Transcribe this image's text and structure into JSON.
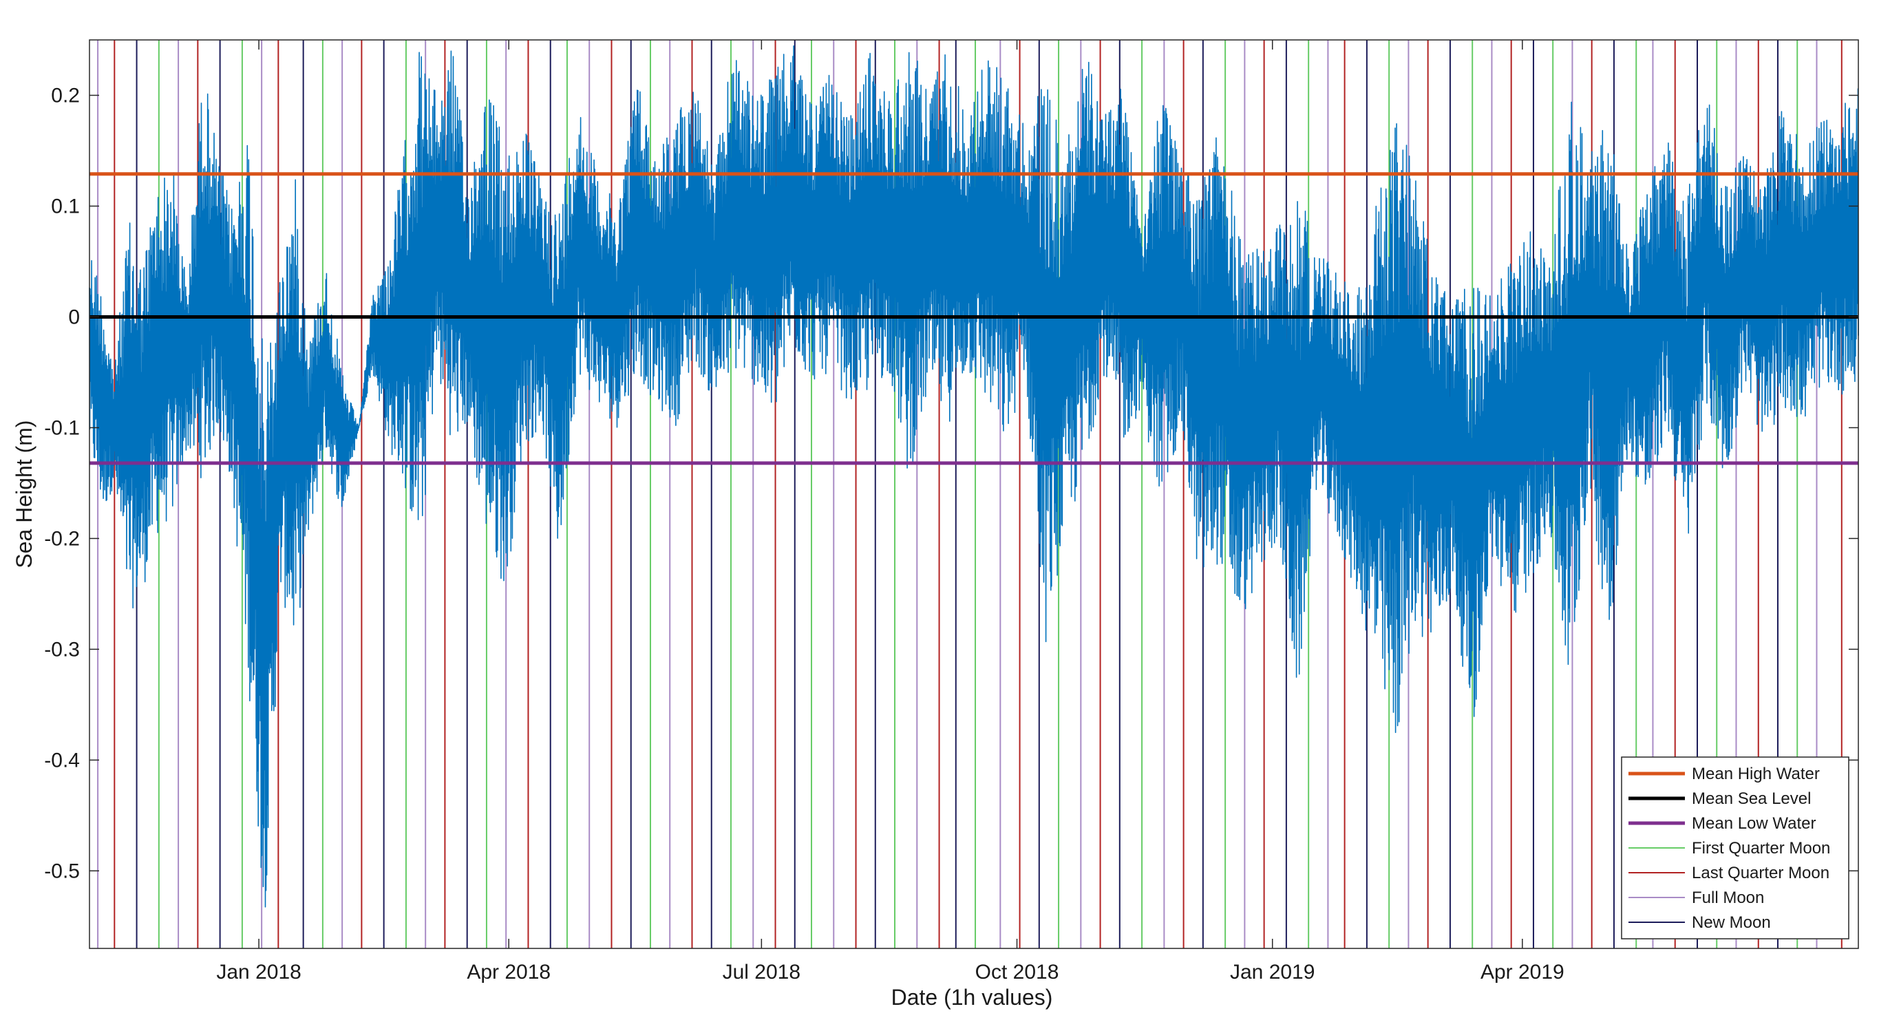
{
  "chart_data": {
    "type": "line",
    "xlabel": "Date (1h values)",
    "ylabel": "Sea Height (m)",
    "xlim": [
      "2017-11-01",
      "2019-07-31"
    ],
    "ylim": [
      -0.57,
      0.25
    ],
    "x_ticks": [
      {
        "date": "2018-01-01",
        "label": "Jan 2018"
      },
      {
        "date": "2018-04-01",
        "label": "Apr 2018"
      },
      {
        "date": "2018-07-01",
        "label": "Jul 2018"
      },
      {
        "date": "2018-10-01",
        "label": "Oct 2018"
      },
      {
        "date": "2019-01-01",
        "label": "Jan 2019"
      },
      {
        "date": "2019-04-01",
        "label": "Apr 2019"
      }
    ],
    "y_ticks": [
      {
        "value": 0.2,
        "label": "0.2"
      },
      {
        "value": 0.1,
        "label": "0.1"
      },
      {
        "value": 0,
        "label": "0"
      },
      {
        "value": -0.1,
        "label": "-0.1"
      },
      {
        "value": -0.2,
        "label": "-0.2"
      },
      {
        "value": -0.3,
        "label": "-0.3"
      },
      {
        "value": -0.4,
        "label": "-0.4"
      },
      {
        "value": -0.5,
        "label": "-0.5"
      }
    ],
    "reference_lines": [
      {
        "name": "Mean High Water",
        "value": 0.129,
        "color": "#d95319"
      },
      {
        "name": "Mean Sea Level",
        "value": 0.0,
        "color": "#000000"
      },
      {
        "name": "Mean Low Water",
        "value": -0.132,
        "color": "#7e2f8e"
      }
    ],
    "moon_phases": {
      "first_quarter": {
        "name": "First Quarter Moon",
        "color": "#66cc66",
        "dates": [
          "2017-11-26",
          "2017-12-26",
          "2018-01-24",
          "2018-02-23",
          "2018-03-24",
          "2018-04-22",
          "2018-05-22",
          "2018-06-20",
          "2018-07-19",
          "2018-08-18",
          "2018-09-16",
          "2018-10-16",
          "2018-11-15",
          "2018-12-15",
          "2019-01-14",
          "2019-02-12",
          "2019-03-14",
          "2019-04-12",
          "2019-05-12",
          "2019-06-10",
          "2019-07-09"
        ]
      },
      "last_quarter": {
        "name": "Last Quarter Moon",
        "color": "#b22222",
        "dates": [
          "2017-11-10",
          "2017-12-10",
          "2018-01-08",
          "2018-02-07",
          "2018-03-09",
          "2018-04-08",
          "2018-05-08",
          "2018-06-06",
          "2018-07-06",
          "2018-08-04",
          "2018-09-03",
          "2018-10-02",
          "2018-10-31",
          "2018-11-30",
          "2018-12-29",
          "2019-01-27",
          "2019-02-26",
          "2019-03-28",
          "2019-04-26",
          "2019-05-26",
          "2019-06-25",
          "2019-07-25"
        ]
      },
      "full_moon": {
        "name": "Full Moon",
        "color": "#a98bc6",
        "dates": [
          "2017-11-04",
          "2017-12-03",
          "2018-01-02",
          "2018-01-31",
          "2018-03-02",
          "2018-03-31",
          "2018-04-30",
          "2018-05-29",
          "2018-06-28",
          "2018-07-27",
          "2018-08-26",
          "2018-09-25",
          "2018-10-24",
          "2018-11-23",
          "2018-12-22",
          "2019-01-21",
          "2019-02-19",
          "2019-03-21",
          "2019-04-19",
          "2019-05-18",
          "2019-06-17",
          "2019-07-16"
        ]
      },
      "new_moon": {
        "name": "New Moon",
        "color": "#1c1c5a",
        "dates": [
          "2017-11-18",
          "2017-12-18",
          "2018-01-17",
          "2018-02-15",
          "2018-03-17",
          "2018-04-16",
          "2018-05-15",
          "2018-06-13",
          "2018-07-13",
          "2018-08-11",
          "2018-09-09",
          "2018-10-09",
          "2018-11-07",
          "2018-12-07",
          "2019-01-06",
          "2019-02-04",
          "2019-03-06",
          "2019-04-05",
          "2019-05-04",
          "2019-06-03",
          "2019-07-02"
        ]
      }
    },
    "series": [
      {
        "name": "Sea Height",
        "color": "#0072bd",
        "envelope": {
          "dates": [
            "2017-11-01",
            "2017-11-06",
            "2017-11-10",
            "2017-11-15",
            "2017-11-20",
            "2017-11-25",
            "2017-12-01",
            "2017-12-06",
            "2017-12-12",
            "2017-12-17",
            "2017-12-22",
            "2017-12-28",
            "2018-01-03",
            "2018-01-09",
            "2018-01-14",
            "2018-01-19",
            "2018-01-25",
            "2018-01-31",
            "2018-02-06",
            "2018-02-11",
            "2018-02-17",
            "2018-02-22",
            "2018-02-28",
            "2018-03-06",
            "2018-03-12",
            "2018-03-17",
            "2018-03-24",
            "2018-03-31",
            "2018-04-06",
            "2018-04-13",
            "2018-04-19",
            "2018-04-26",
            "2018-05-03",
            "2018-05-10",
            "2018-05-17",
            "2018-05-24",
            "2018-05-31",
            "2018-06-07",
            "2018-06-14",
            "2018-06-21",
            "2018-06-28",
            "2018-07-05",
            "2018-07-12",
            "2018-07-19",
            "2018-07-26",
            "2018-08-02",
            "2018-08-09",
            "2018-08-16",
            "2018-08-23",
            "2018-08-30",
            "2018-09-06",
            "2018-09-13",
            "2018-09-20",
            "2018-09-27",
            "2018-10-04",
            "2018-10-11",
            "2018-10-18",
            "2018-10-25",
            "2018-11-01",
            "2018-11-08",
            "2018-11-15",
            "2018-11-22",
            "2018-11-29",
            "2018-12-06",
            "2018-12-13",
            "2018-12-20",
            "2018-12-27",
            "2019-01-03",
            "2019-01-10",
            "2019-01-17",
            "2019-01-24",
            "2019-01-31",
            "2019-02-07",
            "2019-02-14",
            "2019-02-21",
            "2019-02-28",
            "2019-03-07",
            "2019-03-14",
            "2019-03-21",
            "2019-03-28",
            "2019-04-04",
            "2019-04-11",
            "2019-04-18",
            "2019-04-25",
            "2019-05-02",
            "2019-05-09",
            "2019-05-16",
            "2019-05-23",
            "2019-05-30",
            "2019-06-06",
            "2019-06-13",
            "2019-06-20",
            "2019-06-27",
            "2019-07-04",
            "2019-07-11",
            "2019-07-18",
            "2019-07-25",
            "2019-07-31"
          ],
          "upper": [
            0.07,
            0.02,
            -0.05,
            0.09,
            0.05,
            0.12,
            0.14,
            0.03,
            0.23,
            0.15,
            0.1,
            0.18,
            -0.05,
            0.05,
            0.13,
            -0.02,
            0.05,
            -0.05,
            -0.1,
            0.02,
            0.06,
            0.15,
            0.25,
            0.2,
            0.25,
            0.12,
            0.22,
            0.15,
            0.18,
            0.12,
            0.1,
            0.2,
            0.13,
            0.1,
            0.22,
            0.15,
            0.18,
            0.22,
            0.13,
            0.25,
            0.2,
            0.22,
            0.25,
            0.2,
            0.22,
            0.18,
            0.24,
            0.2,
            0.25,
            0.21,
            0.25,
            0.18,
            0.24,
            0.22,
            0.17,
            0.22,
            0.15,
            0.25,
            0.18,
            0.22,
            0.1,
            0.2,
            0.15,
            0.12,
            0.18,
            0.08,
            0.06,
            0.09,
            0.12,
            0.06,
            0.05,
            0.02,
            0.1,
            0.18,
            0.15,
            0.04,
            0.02,
            0.03,
            0.02,
            0.05,
            0.08,
            0.05,
            0.2,
            0.15,
            0.18,
            0.06,
            0.12,
            0.17,
            0.1,
            0.22,
            0.12,
            0.15,
            0.12,
            0.2,
            0.15,
            0.18,
            0.19,
            0.21
          ],
          "lower": [
            -0.12,
            -0.18,
            -0.15,
            -0.27,
            -0.25,
            -0.2,
            -0.18,
            -0.12,
            -0.15,
            -0.1,
            -0.15,
            -0.32,
            -0.55,
            -0.25,
            -0.3,
            -0.2,
            -0.12,
            -0.18,
            -0.1,
            -0.05,
            -0.12,
            -0.15,
            -0.22,
            -0.05,
            -0.12,
            -0.1,
            -0.2,
            -0.25,
            -0.12,
            -0.1,
            -0.22,
            -0.05,
            -0.08,
            -0.1,
            -0.05,
            -0.08,
            -0.1,
            -0.04,
            -0.08,
            -0.05,
            -0.06,
            -0.1,
            -0.03,
            -0.06,
            -0.05,
            -0.08,
            -0.07,
            -0.05,
            -0.15,
            -0.07,
            -0.1,
            -0.05,
            -0.08,
            -0.12,
            -0.05,
            -0.3,
            -0.2,
            -0.15,
            -0.05,
            -0.12,
            -0.08,
            -0.18,
            -0.1,
            -0.25,
            -0.22,
            -0.28,
            -0.24,
            -0.2,
            -0.35,
            -0.15,
            -0.2,
            -0.25,
            -0.32,
            -0.4,
            -0.28,
            -0.3,
            -0.25,
            -0.38,
            -0.22,
            -0.28,
            -0.24,
            -0.2,
            -0.35,
            -0.15,
            -0.3,
            -0.12,
            -0.18,
            -0.1,
            -0.22,
            -0.08,
            -0.15,
            -0.06,
            -0.12,
            -0.08,
            -0.1,
            -0.06,
            -0.07,
            -0.07
          ]
        }
      }
    ],
    "legend": {
      "position": "bottom-right",
      "entries": [
        {
          "label": "Mean High Water",
          "color": "#d95319",
          "width": 3
        },
        {
          "label": "Mean Sea Level",
          "color": "#000000",
          "width": 3
        },
        {
          "label": "Mean Low Water",
          "color": "#7e2f8e",
          "width": 3
        },
        {
          "label": "First Quarter Moon",
          "color": "#66cc66",
          "width": 1
        },
        {
          "label": "Last Quarter Moon",
          "color": "#b22222",
          "width": 1
        },
        {
          "label": "Full Moon",
          "color": "#a98bc6",
          "width": 1
        },
        {
          "label": "New Moon",
          "color": "#1c1c5a",
          "width": 1
        }
      ]
    },
    "grid": false
  }
}
